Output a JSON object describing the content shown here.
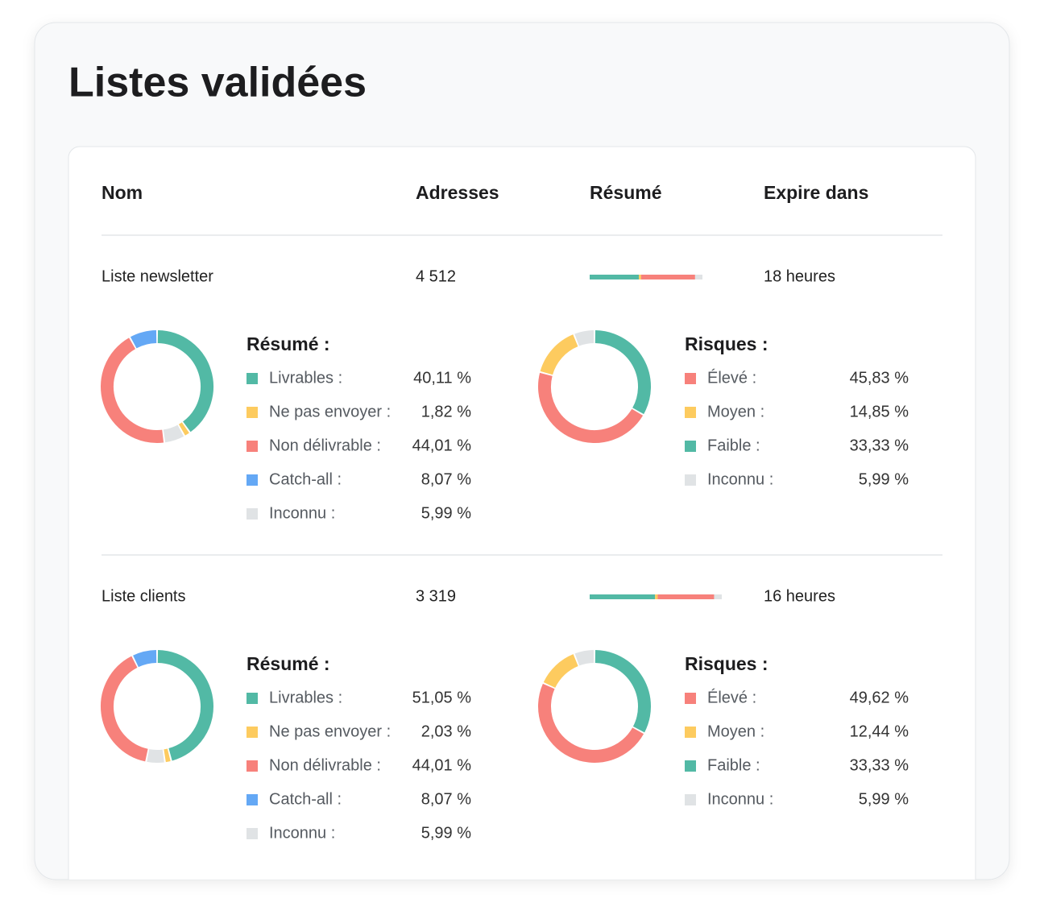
{
  "title": "Listes validées",
  "table": {
    "columns": [
      "Nom",
      "Adresses",
      "Résumé",
      "Expire dans"
    ],
    "rows": [
      {
        "name": "Liste newsletter",
        "addresses": "4 512",
        "expires": "18 heures",
        "summary": {
          "title": "Résumé :",
          "items": [
            {
              "label": "Livrables :",
              "value": 40.11,
              "value_label": "40,11 %",
              "color": "#52b9a5"
            },
            {
              "label": "Ne pas envoyer :",
              "value": 1.82,
              "value_label": "1,82 %",
              "color": "#fdcb5f"
            },
            {
              "label": "Non délivrable :",
              "value": 44.01,
              "value_label": "44,01 %",
              "color": "#f7817b"
            },
            {
              "label": "Catch-all :",
              "value": 8.07,
              "value_label": "8,07 %",
              "color": "#64a8f5"
            },
            {
              "label": "Inconnu :",
              "value": 5.99,
              "value_label": "5,99 %",
              "color": "#e0e3e5"
            }
          ]
        },
        "risks": {
          "title": "Risques :",
          "items": [
            {
              "label": "Élevé :",
              "value": 45.83,
              "value_label": "45,83 %",
              "color": "#f7817b"
            },
            {
              "label": "Moyen :",
              "value": 14.85,
              "value_label": "14,85 %",
              "color": "#fdcb5f"
            },
            {
              "label": "Faible :",
              "value": 33.33,
              "value_label": "33,33 %",
              "color": "#52b9a5"
            },
            {
              "label": "Inconnu :",
              "value": 5.99,
              "value_label": "5,99 %",
              "color": "#e0e3e5"
            }
          ]
        }
      },
      {
        "name": "Liste clients",
        "addresses": "3 319",
        "expires": "16 heures",
        "summary": {
          "title": "Résumé :",
          "items": [
            {
              "label": "Livrables :",
              "value": 51.05,
              "value_label": "51,05 %",
              "color": "#52b9a5"
            },
            {
              "label": "Ne pas envoyer :",
              "value": 2.03,
              "value_label": "2,03 %",
              "color": "#fdcb5f"
            },
            {
              "label": "Non délivrable :",
              "value": 44.01,
              "value_label": "44,01 %",
              "color": "#f7817b"
            },
            {
              "label": "Catch-all :",
              "value": 8.07,
              "value_label": "8,07 %",
              "color": "#64a8f5"
            },
            {
              "label": "Inconnu :",
              "value": 5.99,
              "value_label": "5,99 %",
              "color": "#e0e3e5"
            }
          ]
        },
        "risks": {
          "title": "Risques :",
          "items": [
            {
              "label": "Élevé :",
              "value": 49.62,
              "value_label": "49,62 %",
              "color": "#f7817b"
            },
            {
              "label": "Moyen :",
              "value": 12.44,
              "value_label": "12,44 %",
              "color": "#fdcb5f"
            },
            {
              "label": "Faible :",
              "value": 33.33,
              "value_label": "33,33 %",
              "color": "#52b9a5"
            },
            {
              "label": "Inconnu :",
              "value": 5.99,
              "value_label": "5,99 %",
              "color": "#e0e3e5"
            }
          ]
        }
      }
    ]
  }
}
